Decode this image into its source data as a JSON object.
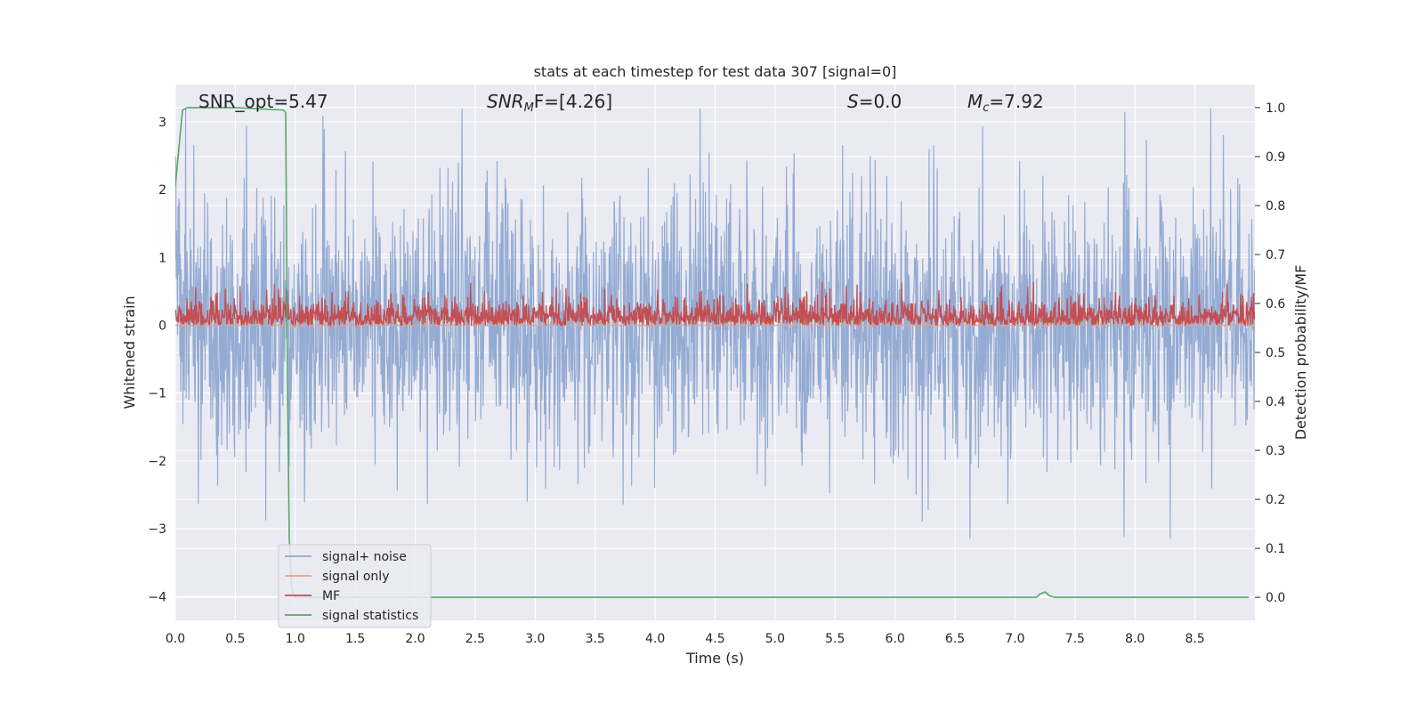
{
  "chart_data": {
    "type": "line",
    "title": "stats at each timestep for test data 307 [signal=0]",
    "xlabel": "Time (s)",
    "ylabel": "Whitened strain",
    "y2label": "Detection probability/MF",
    "xlim": [
      0,
      9.0
    ],
    "ylim": [
      -4.35,
      3.55
    ],
    "y2lim": [
      -0.047,
      1.047
    ],
    "xticks": [
      "0.0",
      "0.5",
      "1.0",
      "1.5",
      "2.0",
      "2.5",
      "3.0",
      "3.5",
      "4.0",
      "4.5",
      "5.0",
      "5.5",
      "6.0",
      "6.5",
      "7.0",
      "7.5",
      "8.0",
      "8.5"
    ],
    "yticks": [
      "3",
      "2",
      "1",
      "0",
      "−1",
      "−2",
      "−3",
      "−4"
    ],
    "y2ticks": [
      "1.0",
      "0.9",
      "0.8",
      "0.7",
      "0.6",
      "0.5",
      "0.4",
      "0.3",
      "0.2",
      "0.1",
      "0.0"
    ],
    "grid": true,
    "legend_position": "lower-left",
    "annotations": {
      "snr_opt": "SNR_opt=5.47",
      "snr_mf_base": "SNR",
      "snr_mf_sub": "M",
      "snr_mf_rest": "F=[4.26]",
      "s_label": "S",
      "s_value": "=0.0",
      "mc_base": "M",
      "mc_sub": "c",
      "mc_value": "=7.92"
    },
    "series": [
      {
        "name": "signal+ noise",
        "color": "#8fa8d1",
        "axis": "left",
        "style": "noise",
        "amplitude_typical": 1.5,
        "peak_max": 3.2,
        "peak_min": -3.15
      },
      {
        "name": "signal only",
        "color": "#e6a481",
        "axis": "left",
        "style": "flat",
        "y": [
          [
            0.0,
            0.0
          ],
          [
            9.0,
            0.0
          ]
        ]
      },
      {
        "name": "MF",
        "color": "#c44e52",
        "axis": "right",
        "style": "mf_noise",
        "baseline": 0.555,
        "typical_peak": 0.64,
        "max_peak": 0.7
      },
      {
        "name": "signal statistics",
        "color": "#55a868",
        "axis": "right",
        "points": [
          [
            0.0,
            0.84
          ],
          [
            0.06,
            0.995
          ],
          [
            0.1,
            1.0
          ],
          [
            0.5,
            1.0
          ],
          [
            0.9,
            0.995
          ],
          [
            0.92,
            0.99
          ],
          [
            0.935,
            0.45
          ],
          [
            0.95,
            0.12
          ],
          [
            0.97,
            0.02
          ],
          [
            1.0,
            0.0
          ],
          [
            7.18,
            0.0
          ],
          [
            7.21,
            0.007
          ],
          [
            7.25,
            0.011
          ],
          [
            7.29,
            0.003
          ],
          [
            7.33,
            0.0
          ],
          [
            8.95,
            0.0
          ]
        ]
      }
    ]
  },
  "legend": {
    "items": [
      {
        "label": "signal+ noise",
        "color": "#8fa8d1"
      },
      {
        "label": "signal only",
        "color": "#e6a481"
      },
      {
        "label": "MF",
        "color": "#c44e52"
      },
      {
        "label": "signal statistics",
        "color": "#55a868"
      }
    ]
  }
}
